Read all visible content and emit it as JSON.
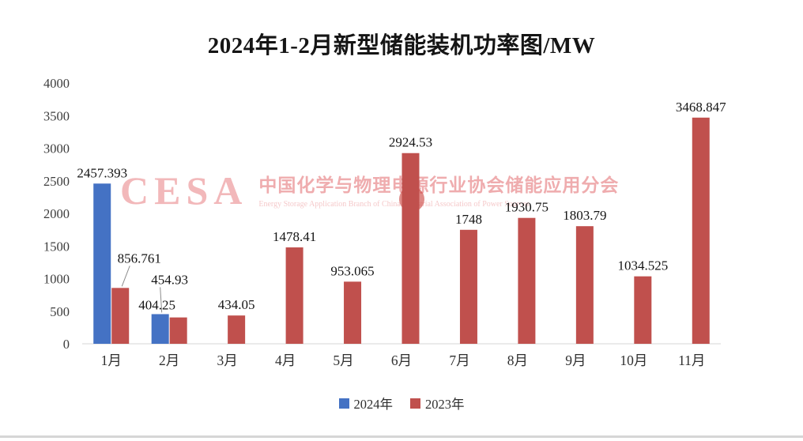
{
  "watermark": {
    "logo": "CESA",
    "line1": "中国化学与物理电源行业协会储能应用分会",
    "line2": "Energy Storage Application Branch of China Industrial Association of Power Sources"
  },
  "chart_data": {
    "type": "bar",
    "title": "2024年1-2月新型储能装机功率图/MW",
    "categories": [
      "1月",
      "2月",
      "3月",
      "4月",
      "5月",
      "6月",
      "7月",
      "8月",
      "9月",
      "10月",
      "11月"
    ],
    "series": [
      {
        "name": "2024年",
        "color": "#4472C4",
        "values": [
          2457.393,
          454.93,
          null,
          null,
          null,
          null,
          null,
          null,
          null,
          null,
          null
        ]
      },
      {
        "name": "2023年",
        "color": "#C0504D",
        "values": [
          856.761,
          404.25,
          434.05,
          1478.41,
          953.065,
          2924.53,
          1748,
          1930.75,
          1803.79,
          1034.525,
          3468.847
        ]
      }
    ],
    "ylim": [
      0,
      4000
    ],
    "ytick_step": 500,
    "ytick_labels": [
      "0",
      "500",
      "1000",
      "1500",
      "2000",
      "2500",
      "3000",
      "3500",
      "4000"
    ],
    "grid": false,
    "legend_position": "bottom",
    "axis_color": "#3d3d3d"
  }
}
